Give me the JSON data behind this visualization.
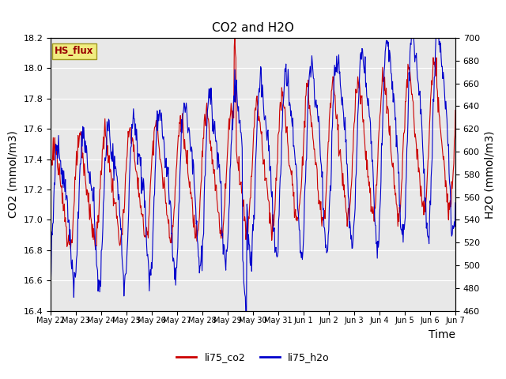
{
  "title": "CO2 and H2O",
  "xlabel": "Time",
  "ylabel_left": "CO2 (mmol/m3)",
  "ylabel_right": "H2O (mmol/m3)",
  "ylim_left": [
    16.4,
    18.2
  ],
  "ylim_right": [
    460,
    700
  ],
  "yticks_left": [
    16.4,
    16.6,
    16.8,
    17.0,
    17.2,
    17.4,
    17.6,
    17.8,
    18.0,
    18.2
  ],
  "yticks_right": [
    460,
    480,
    500,
    520,
    540,
    560,
    580,
    600,
    620,
    640,
    660,
    680,
    700
  ],
  "bg_color": "#e8e8e8",
  "fig_color": "#ffffff",
  "line_color_co2": "#cc0000",
  "line_color_h2o": "#0000cc",
  "legend_labels": [
    "li75_co2",
    "li75_h2o"
  ],
  "hs_flux_label": "HS_flux",
  "hs_flux_bg": "#f0ec80",
  "hs_flux_border": "#a09820",
  "label_fontsize": 10,
  "title_fontsize": 11,
  "tick_labels": [
    "May 22",
    "May 23",
    "May 24",
    "May 25",
    "May 26",
    "May 27",
    "May 28",
    "May 29",
    "May 30",
    "May 31",
    "Jun 1",
    "Jun 2",
    "Jun 3",
    "Jun 4",
    "Jun 5",
    "Jun 6",
    "Jun 7"
  ]
}
